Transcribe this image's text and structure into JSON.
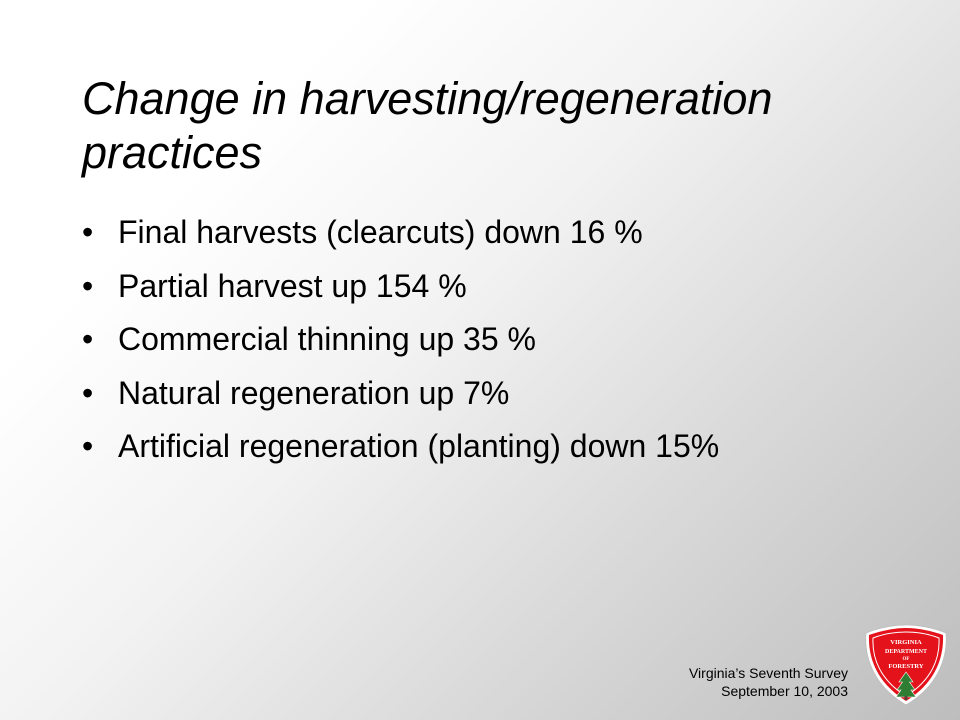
{
  "title": {
    "line1": "Change in harvesting/regeneration",
    "line2": "practices"
  },
  "bullets": [
    {
      "marker": "•",
      "text": "Final harvests (clearcuts) down 16 %"
    },
    {
      "marker": "•",
      "text": "Partial harvest up 154 %"
    },
    {
      "marker": "•",
      "text": "Commercial thinning up 35 %"
    },
    {
      "marker": "•",
      "text": "Natural regeneration up 7%"
    },
    {
      "marker": "•",
      "text": "Artificial regeneration (planting) down 15%"
    }
  ],
  "footer": {
    "line1": "Virginia’s Seventh Survey",
    "line2": "September 10, 2003"
  },
  "logo": {
    "line1": "VIRGINIA",
    "line2": "DEPARTMENT",
    "line3": "OF",
    "line4": "FORESTRY",
    "colors": {
      "shield": "#e3121b",
      "border": "#ffffff",
      "tree": "#2e7d32"
    }
  }
}
